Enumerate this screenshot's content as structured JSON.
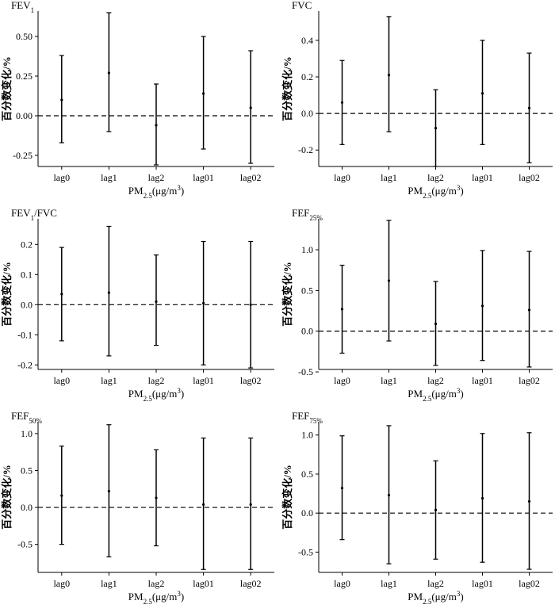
{
  "figure": {
    "x_axis_label": "PM2.5(μg/m3)",
    "y_axis_label": "百分数变化/%"
  },
  "chart_data": [
    {
      "type": "errorbar",
      "title": "FEV1",
      "title_parts": {
        "main": "FEV",
        "sub": "1"
      },
      "categories": [
        "lag0",
        "lag1",
        "lag2",
        "lag01",
        "lag02"
      ],
      "values": [
        0.1,
        0.27,
        -0.06,
        0.14,
        0.05
      ],
      "lower": [
        -0.17,
        -0.1,
        -0.31,
        -0.21,
        -0.3
      ],
      "upper": [
        0.38,
        0.65,
        0.2,
        0.5,
        0.41
      ],
      "ylim": [
        -0.32,
        0.66
      ],
      "yticks": [
        -0.25,
        0.0,
        0.25,
        0.5
      ],
      "ytick_labels": [
        "-0.25",
        "0.00",
        "0.25",
        "0.50"
      ],
      "reference_line": 0
    },
    {
      "type": "errorbar",
      "title": "FVC",
      "title_parts": {
        "main": "FVC",
        "sub": ""
      },
      "categories": [
        "lag0",
        "lag1",
        "lag2",
        "lag01",
        "lag02"
      ],
      "values": [
        0.06,
        0.21,
        -0.08,
        0.11,
        0.03
      ],
      "lower": [
        -0.17,
        -0.1,
        -0.29,
        -0.17,
        -0.27
      ],
      "upper": [
        0.29,
        0.53,
        0.13,
        0.4,
        0.33
      ],
      "ylim": [
        -0.29,
        0.56
      ],
      "yticks": [
        -0.2,
        0.0,
        0.2,
        0.4
      ],
      "ytick_labels": [
        "-0.2",
        "0.0",
        "0.2",
        "0.4"
      ],
      "reference_line": 0
    },
    {
      "type": "errorbar",
      "title": "FEV1/FVC",
      "title_parts": {
        "main": "FEV",
        "sub": "1",
        "tail": "/FVC"
      },
      "categories": [
        "lag0",
        "lag1",
        "lag2",
        "lag01",
        "lag02"
      ],
      "values": [
        0.035,
        0.04,
        0.01,
        0.005,
        0.0
      ],
      "lower": [
        -0.12,
        -0.17,
        -0.135,
        -0.2,
        -0.21
      ],
      "upper": [
        0.19,
        0.26,
        0.165,
        0.21,
        0.21
      ],
      "ylim": [
        -0.215,
        0.285
      ],
      "yticks": [
        -0.2,
        -0.1,
        0.0,
        0.1,
        0.2
      ],
      "ytick_labels": [
        "-0.2",
        "-0.1",
        "0.0",
        "0.1",
        "0.2"
      ],
      "reference_line": 0
    },
    {
      "type": "errorbar",
      "title": "FEF25%",
      "title_parts": {
        "main": "FEF",
        "sub": "25%"
      },
      "categories": [
        "lag0",
        "lag1",
        "lag2",
        "lag01",
        "lag02"
      ],
      "values": [
        0.27,
        0.62,
        0.09,
        0.31,
        0.26
      ],
      "lower": [
        -0.27,
        -0.12,
        -0.42,
        -0.36,
        -0.44
      ],
      "upper": [
        0.81,
        1.36,
        0.61,
        0.99,
        0.98
      ],
      "ylim": [
        -0.47,
        1.38
      ],
      "yticks": [
        -0.5,
        0.0,
        0.5,
        1.0
      ],
      "ytick_labels": [
        "-0.5",
        "0.0",
        "0.5",
        "1.0"
      ],
      "reference_line": 0
    },
    {
      "type": "errorbar",
      "title": "FEF50%",
      "title_parts": {
        "main": "FEF",
        "sub": "50%"
      },
      "categories": [
        "lag0",
        "lag1",
        "lag2",
        "lag01",
        "lag02"
      ],
      "values": [
        0.16,
        0.22,
        0.13,
        0.04,
        0.04
      ],
      "lower": [
        -0.5,
        -0.67,
        -0.52,
        -0.84,
        -0.84
      ],
      "upper": [
        0.83,
        1.12,
        0.78,
        0.94,
        0.94
      ],
      "ylim": [
        -0.88,
        1.16
      ],
      "yticks": [
        -0.5,
        0.0,
        0.5,
        1.0
      ],
      "ytick_labels": [
        "-0.5",
        "0.0",
        "0.5",
        "1.0"
      ],
      "reference_line": 0
    },
    {
      "type": "errorbar",
      "title": "FEF75%",
      "title_parts": {
        "main": "FEF",
        "sub": "75%"
      },
      "categories": [
        "lag0",
        "lag1",
        "lag2",
        "lag01",
        "lag02"
      ],
      "values": [
        0.32,
        0.23,
        0.04,
        0.19,
        0.15
      ],
      "lower": [
        -0.34,
        -0.65,
        -0.59,
        -0.63,
        -0.72
      ],
      "upper": [
        0.99,
        1.12,
        0.67,
        1.02,
        1.03
      ],
      "ylim": [
        -0.76,
        1.17
      ],
      "yticks": [
        -0.5,
        0.0,
        0.5,
        1.0
      ],
      "ytick_labels": [
        "-0.5",
        "0.0",
        "0.5",
        "1.0"
      ],
      "reference_line": 0
    }
  ]
}
